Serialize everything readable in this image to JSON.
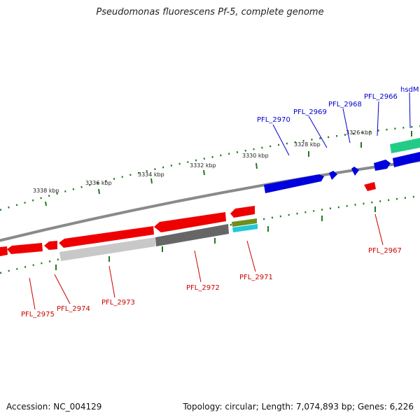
{
  "title": "Pseudomonas fluorescens Pf-5, complete genome",
  "footer": {
    "accession": "Accession: NC_004129",
    "topology": "Topology: circular; Length: 7,074,893 bp; Genes: 6,226"
  },
  "colors": {
    "backbone": "#8a8a8a",
    "tick": "#1e7a1e",
    "forward_gene": "#0000dd",
    "reverse_gene": "#ee0000",
    "forward_label": "#0000cc",
    "reverse_label": "#cc0000",
    "rna": "#22cc88",
    "gray_feature": "#666666",
    "light_gray_feature": "#c8c8c8",
    "olive_feature": "#6e8e1e",
    "cyan_feature": "#22c8d8"
  },
  "scale_labels": [
    "3338 kbp",
    "3336 kbp",
    "3334 kbp",
    "3332 kbp",
    "3330 kbp",
    "3328 kbp",
    "3326 kbp"
  ],
  "forward_gene_labels": [
    "PFL_2970",
    "PFL_2969",
    "PFL_2968",
    "PFL_2966",
    "hsdM"
  ],
  "reverse_gene_labels": [
    "PFL_2975",
    "PFL_2974",
    "PFL_2973",
    "PFL_2972",
    "PFL_2971",
    "PFL_2967"
  ]
}
